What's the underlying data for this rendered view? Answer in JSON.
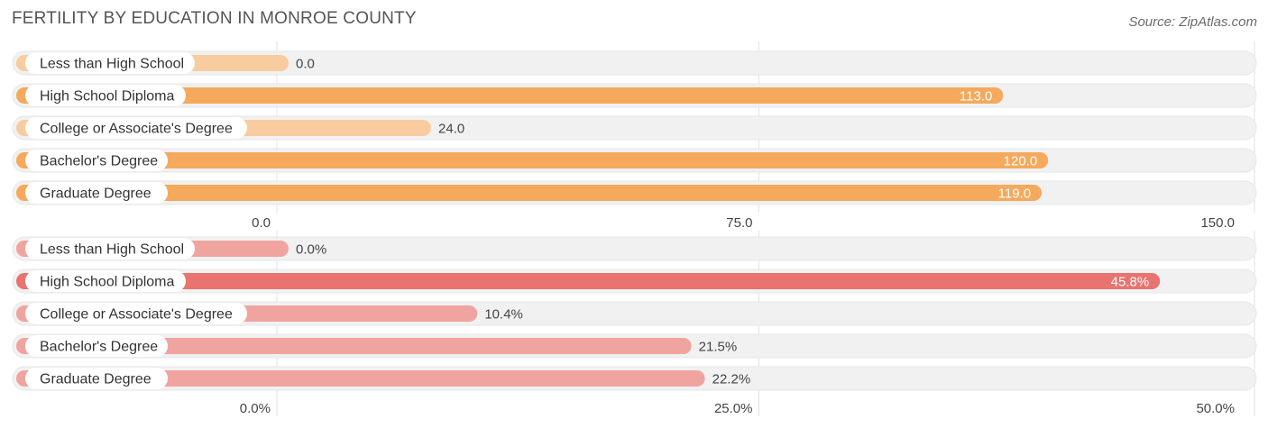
{
  "title": "FERTILITY BY EDUCATION IN MONROE COUNTY",
  "source": "Source: ZipAtlas.com",
  "colors": {
    "orange_main": "#f5a95c",
    "orange_light": "#f8cc9f",
    "red_main": "#e8736f",
    "red_light": "#f0a4a0",
    "track": "#f1f1f1",
    "grid": "#e2e2e2"
  },
  "chart_data": [
    {
      "type": "bar",
      "orientation": "horizontal",
      "categories": [
        "Less than High School",
        "High School Diploma",
        "College or Associate's Degree",
        "Bachelor's Degree",
        "Graduate Degree"
      ],
      "values": [
        0.0,
        113.0,
        24.0,
        120.0,
        119.0
      ],
      "value_labels": [
        "0.0",
        "113.0",
        "24.0",
        "120.0",
        "119.0"
      ],
      "xlim": [
        0,
        150
      ],
      "ticks": [
        "0.0",
        "75.0",
        "150.0"
      ],
      "grid": true
    },
    {
      "type": "bar",
      "orientation": "horizontal",
      "categories": [
        "Less than High School",
        "High School Diploma",
        "College or Associate's Degree",
        "Bachelor's Degree",
        "Graduate Degree"
      ],
      "values": [
        0.0,
        45.8,
        10.4,
        21.5,
        22.2
      ],
      "value_labels": [
        "0.0%",
        "45.8%",
        "10.4%",
        "21.5%",
        "22.2%"
      ],
      "xlim": [
        0,
        50
      ],
      "ticks": [
        "0.0%",
        "25.0%",
        "50.0%"
      ],
      "grid": true
    }
  ]
}
